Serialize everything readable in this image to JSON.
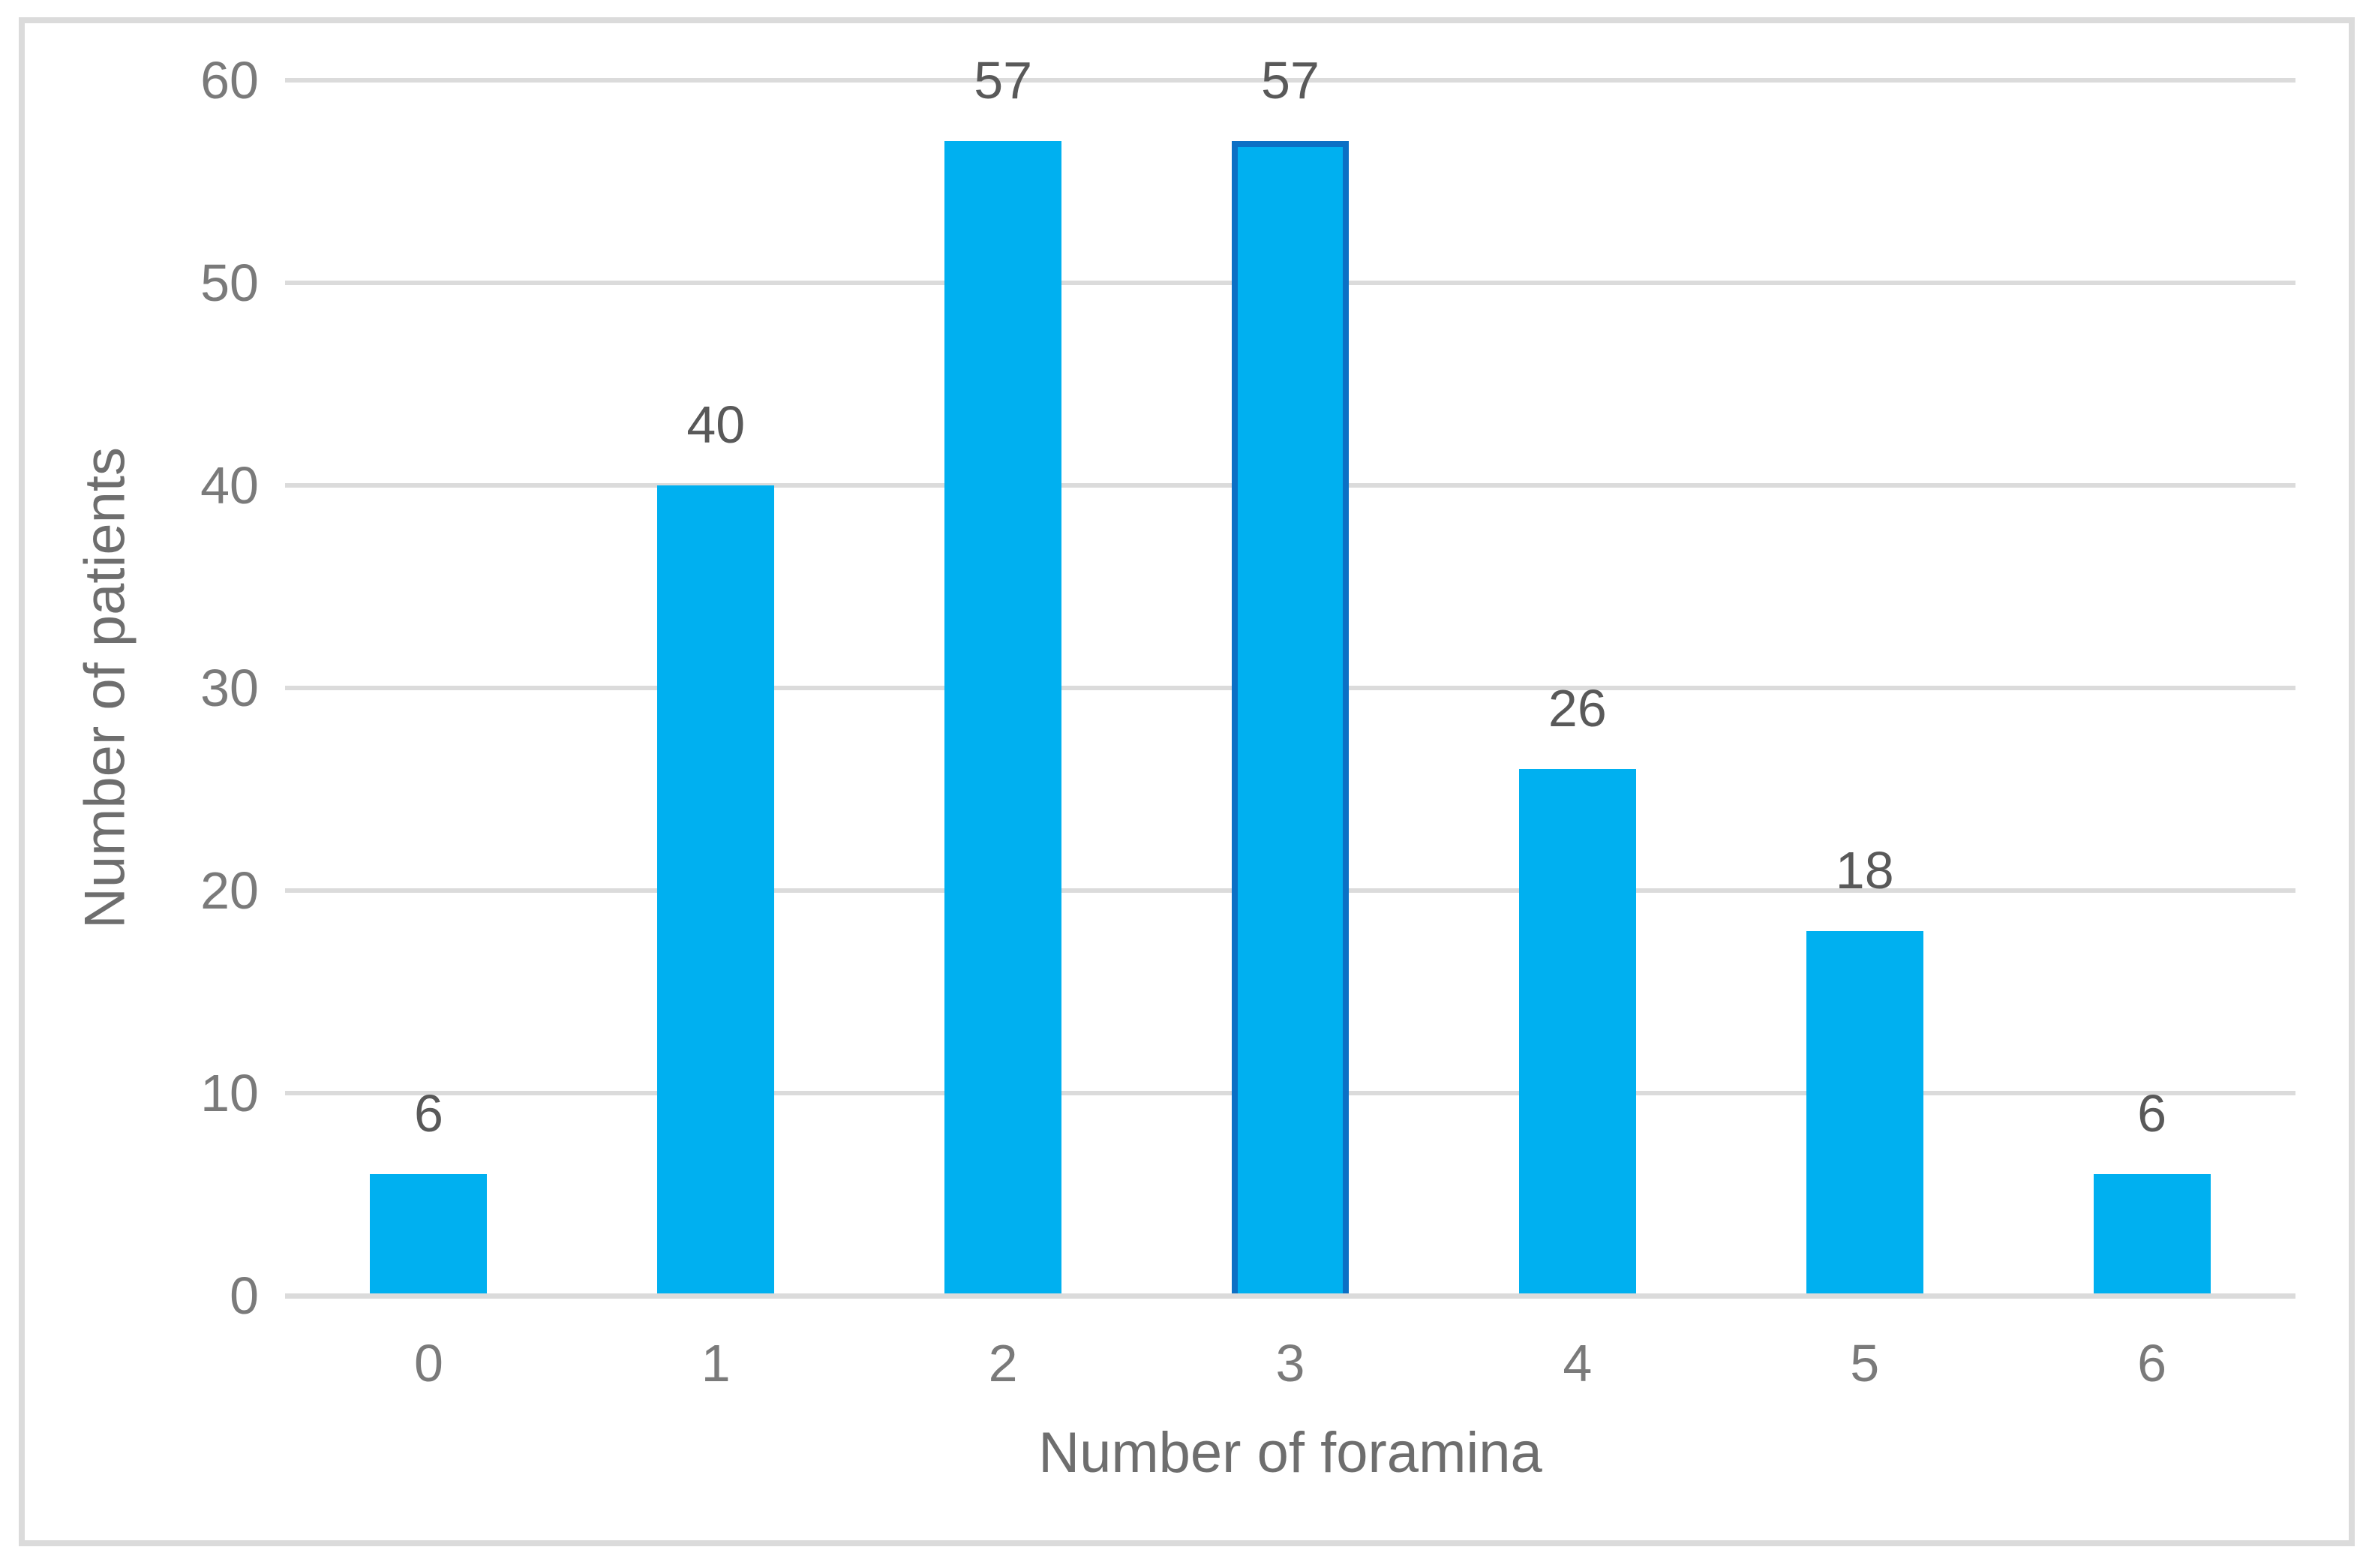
{
  "chart_data": {
    "type": "bar",
    "title": "",
    "categories": [
      "0",
      "1",
      "2",
      "3",
      "4",
      "5",
      "6"
    ],
    "values": [
      6,
      40,
      57,
      57,
      26,
      18,
      6
    ],
    "data_labels": [
      "6",
      "40",
      "57",
      "57",
      "26",
      "18",
      "6"
    ],
    "xlabel": "Number of foramina",
    "ylabel": "Number of patients",
    "yticks": [
      0,
      10,
      20,
      30,
      40,
      50,
      60
    ],
    "ylim": [
      0,
      60
    ],
    "grid": "horizontal",
    "legend": "none",
    "highlighted_index": 3,
    "colors": {
      "bar_fill": "#00B0F0",
      "highlight_border": "#0B70C5",
      "gridline": "#DBDBDB",
      "figure_border": "#DBDBDB",
      "tick_label": "#7A7A7A",
      "axis_title": "#6E6E6E",
      "data_label": "#595959"
    }
  }
}
